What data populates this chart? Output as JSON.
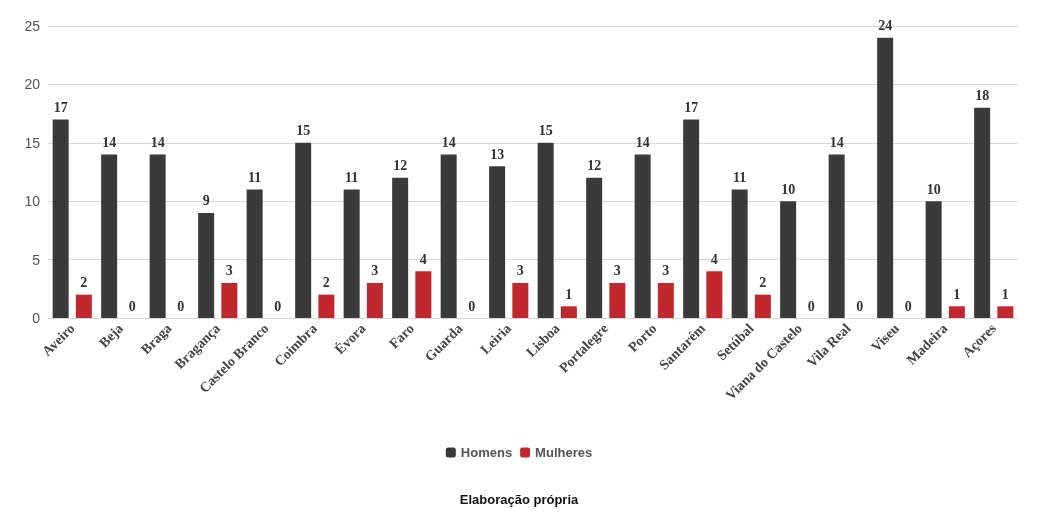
{
  "chart_data": {
    "type": "bar",
    "categories": [
      "Aveiro",
      "Beja",
      "Braga",
      "Bragança",
      "Castelo Branco",
      "Coimbra",
      "Évora",
      "Faro",
      "Guarda",
      "Leiria",
      "Lisboa",
      "Portalegre",
      "Porto",
      "Santarém",
      "Setúbal",
      "Viana do Castelo",
      "Vila Real",
      "Viseu",
      "Madeira",
      "Açores"
    ],
    "series": [
      {
        "name": "Homens",
        "color": "#3a3a3a",
        "values": [
          17,
          14,
          14,
          9,
          11,
          15,
          11,
          12,
          14,
          13,
          15,
          12,
          14,
          17,
          11,
          10,
          14,
          24,
          10,
          18
        ]
      },
      {
        "name": "Mulheres",
        "color": "#c0282d",
        "values": [
          2,
          0,
          0,
          3,
          0,
          2,
          3,
          4,
          0,
          3,
          1,
          3,
          3,
          4,
          2,
          0,
          0,
          0,
          1,
          1
        ]
      }
    ],
    "ylim": [
      0,
      25
    ],
    "yticks": [
      0,
      5,
      10,
      15,
      20,
      25
    ],
    "grid": "y",
    "legend": "bottom",
    "data_labels": true,
    "annotations": [
      "Elaboração própria"
    ]
  }
}
